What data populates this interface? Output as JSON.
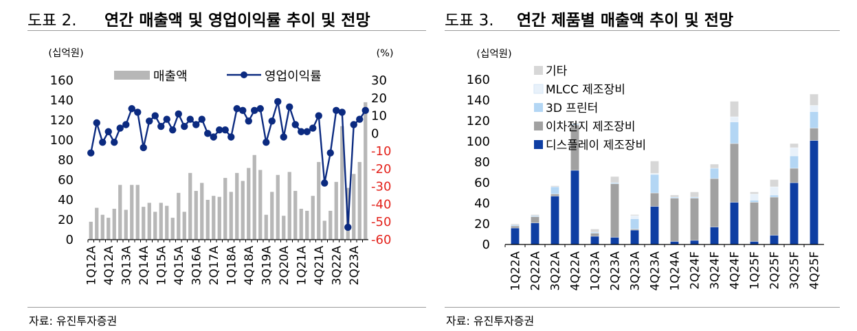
{
  "left_panel": {
    "fig_label": "도표 2.",
    "title": "연간 매출액 및 영업이익률 추이 및 전망",
    "source": "자료: 유진투자증권"
  },
  "right_panel": {
    "fig_label": "도표 3.",
    "title": "연간 제품별 매출액 추이 및 전망",
    "source": "자료: 유진투자증권"
  },
  "colors": {
    "bar_gray": "#b7b7b7",
    "line_navy": "#0b2a80",
    "right_axis_red": "#e3211a",
    "display": "#0e3ea3",
    "battery": "#a1a1a1",
    "printer3d": "#b3d6f4",
    "mlcc": "#e8f1fa",
    "other": "#d7d7d7"
  },
  "chart_data": [
    {
      "type": "bar+line",
      "unit_left": "(십억원)",
      "unit_right": "(%)",
      "ylim_left": [
        0,
        160
      ],
      "ylim_right": [
        -60,
        30
      ],
      "yticks_left": [
        "0",
        "20",
        "40",
        "60",
        "80",
        "100",
        "120",
        "140",
        "160"
      ],
      "yticks_right": [
        "-60",
        "-50",
        "-40",
        "-30",
        "-20",
        "-10",
        "0",
        "10",
        "20",
        "30"
      ],
      "grid": false,
      "legend_position": "top",
      "categories": [
        "1Q12A",
        "2Q12A",
        "3Q12A",
        "4Q12A",
        "1Q13A",
        "2Q13A",
        "3Q13A",
        "4Q13A",
        "1Q14A",
        "2Q14A",
        "3Q14A",
        "4Q14A",
        "1Q15A",
        "2Q15A",
        "3Q15A",
        "4Q15A",
        "1Q16A",
        "2Q16A",
        "3Q16A",
        "4Q16A",
        "1Q17A",
        "2Q17A",
        "3Q17A",
        "4Q17A",
        "1Q18A",
        "2Q18A",
        "3Q18A",
        "4Q18A",
        "1Q19A",
        "2Q19A",
        "3Q19A",
        "4Q19A",
        "1Q20A",
        "2Q20A",
        "3Q20A",
        "4Q20A",
        "1Q21A",
        "2Q21A",
        "3Q21A",
        "4Q21A",
        "1Q22A",
        "2Q22A",
        "3Q22A",
        "4Q22A",
        "1Q23A",
        "2Q23A",
        "3Q23A",
        "4Q23A"
      ],
      "xtick_labels": [
        "1Q12A",
        "4Q12A",
        "3Q13A",
        "2Q14A",
        "1Q15A",
        "4Q15A",
        "3Q16A",
        "2Q17A",
        "1Q18A",
        "4Q18A",
        "3Q19A",
        "2Q20A",
        "1Q21A",
        "4Q21A",
        "3Q22A",
        "2Q23A"
      ],
      "series": [
        {
          "name": "매출액",
          "type": "bar",
          "axis": "left",
          "values": [
            18,
            32,
            25,
            22,
            31,
            55,
            30,
            55,
            55,
            33,
            37,
            28,
            37,
            34,
            22,
            47,
            28,
            67,
            49,
            57,
            40,
            44,
            43,
            62,
            48,
            67,
            59,
            72,
            85,
            70,
            25,
            48,
            65,
            24,
            68,
            49,
            31,
            29,
            44,
            78,
            19,
            29,
            58,
            114,
            52,
            66,
            78,
            138
          ]
        },
        {
          "name": "영업이익률",
          "type": "line",
          "axis": "right",
          "values": [
            -11,
            6,
            -5,
            1,
            -5,
            3,
            5,
            14,
            12,
            -8,
            7,
            10,
            4,
            8,
            2,
            11,
            4,
            8,
            5,
            8,
            0,
            -2,
            2,
            2,
            -2,
            14,
            13,
            7,
            13,
            14,
            -5,
            7,
            18,
            -2,
            15,
            5,
            1,
            1,
            3,
            10,
            -28,
            -11,
            13,
            12,
            -53,
            5,
            8,
            13
          ]
        }
      ]
    },
    {
      "type": "bar",
      "stacked": true,
      "unit_left": "(십억원)",
      "ylim": [
        0,
        160
      ],
      "yticks": [
        "0",
        "20",
        "40",
        "60",
        "80",
        "100",
        "120",
        "140",
        "160"
      ],
      "grid": false,
      "legend_position": "top-left",
      "categories": [
        "1Q22A",
        "2Q22A",
        "3Q22A",
        "4Q22A",
        "1Q23A",
        "2Q23A",
        "3Q23A",
        "4Q23A",
        "1Q24A",
        "2Q24F",
        "3Q24F",
        "4Q24F",
        "1Q25F",
        "2Q25F",
        "3Q25F",
        "4Q25F"
      ],
      "series": [
        {
          "name": "디스플레이 제조장비",
          "values": [
            16,
            21,
            47,
            72,
            8,
            7,
            14,
            37,
            3,
            4,
            17,
            41,
            3,
            9,
            60,
            101
          ]
        },
        {
          "name": "이차전지 제조장비",
          "values": [
            2,
            6,
            2,
            44,
            3,
            52,
            1,
            13,
            42,
            41,
            47,
            57,
            38,
            37,
            14,
            12
          ]
        },
        {
          "name": "3D 프린터",
          "values": [
            1,
            1,
            7,
            1,
            1,
            1,
            10,
            18,
            1,
            1,
            10,
            21,
            2,
            2,
            12,
            16
          ]
        },
        {
          "name": "MLCC 제조장비",
          "values": [
            0,
            0,
            0,
            0,
            0,
            0,
            3,
            1,
            0,
            0,
            0,
            5,
            6,
            8,
            8,
            6
          ]
        },
        {
          "name": "기타",
          "values": [
            1,
            1,
            1,
            1,
            3,
            6,
            1,
            12,
            2,
            5,
            4,
            15,
            2,
            7,
            4,
            11
          ]
        }
      ]
    }
  ]
}
